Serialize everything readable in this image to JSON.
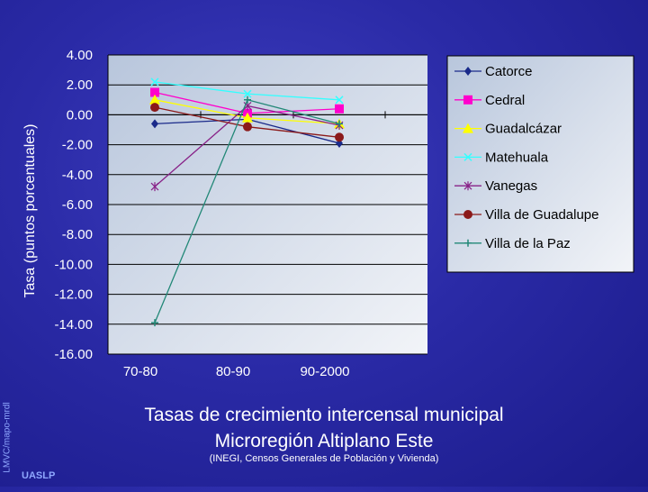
{
  "chart_data": {
    "type": "line",
    "title": "Tasas de crecimiento intercensal municipal",
    "subtitle": "Microregión Altiplano Este",
    "note": "(INEGI, Censos Generales de Población y Vivienda)",
    "xlabel": "",
    "ylabel": "Tasa (puntos porcentuales)",
    "categories": [
      "70-80",
      "80-90",
      "90-2000"
    ],
    "yticks": [
      "4.00",
      "2.00",
      "0.00",
      "-2.00",
      "-4.00",
      "-6.00",
      "-8.00",
      "-10.00",
      "-12.00",
      "-14.00",
      "-16.00"
    ],
    "ylim": [
      -16,
      4
    ],
    "grid": true,
    "legend_position": "right",
    "series": [
      {
        "name": "Catorce",
        "values": [
          -0.6,
          -0.3,
          -1.9
        ],
        "color": "#1a2a8a",
        "marker": "diamond"
      },
      {
        "name": "Cedral",
        "values": [
          1.5,
          0.1,
          0.4
        ],
        "color": "#ff00cc",
        "marker": "square"
      },
      {
        "name": "Guadalcázar",
        "values": [
          1.0,
          -0.2,
          -0.6
        ],
        "color": "#ffff00",
        "marker": "triangle"
      },
      {
        "name": "Matehuala",
        "values": [
          2.2,
          1.4,
          1.0
        ],
        "color": "#33ffff",
        "marker": "x"
      },
      {
        "name": "Vanegas",
        "values": [
          -4.8,
          0.6,
          -0.7
        ],
        "color": "#882288",
        "marker": "star"
      },
      {
        "name": "Villa de Guadalupe",
        "values": [
          0.5,
          -0.8,
          -1.5
        ],
        "color": "#8b1a1a",
        "marker": "circle"
      },
      {
        "name": "Villa de la Paz",
        "values": [
          -13.9,
          1.0,
          -0.6
        ],
        "color": "#228877",
        "marker": "plus"
      }
    ]
  },
  "footer": {
    "credit": "LMVC/mapo-mrdl",
    "org": "UASLP"
  }
}
